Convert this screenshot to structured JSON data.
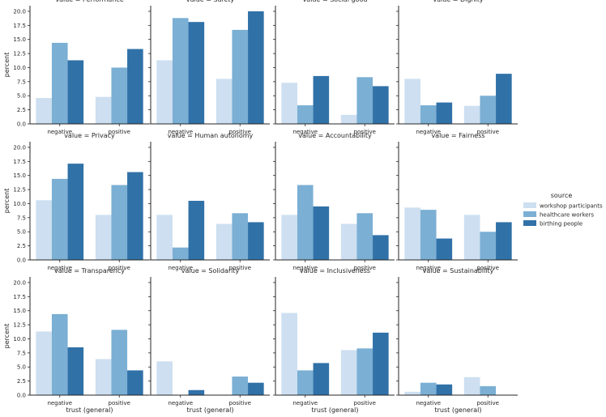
{
  "chart_data": {
    "type": "bar",
    "facet_prefix": "value = ",
    "categories": [
      "negative",
      "positive"
    ],
    "xlabel": "trust (general)",
    "ylabel": "percent",
    "ylim": [
      0,
      21
    ],
    "yticks": [
      0.0,
      2.5,
      5.0,
      7.5,
      10.0,
      12.5,
      15.0,
      17.5,
      20.0
    ],
    "ytick_labels": [
      "0.0",
      "2.5",
      "5.0",
      "7.5",
      "10.0",
      "12.5",
      "15.0",
      "17.5",
      "20.0"
    ],
    "legend": {
      "title": "source",
      "position": "right",
      "entries": [
        {
          "name": "workshop participants",
          "color": "#cddff0"
        },
        {
          "name": "healthcare workers",
          "color": "#7bafd4"
        },
        {
          "name": "birthing people",
          "color": "#3071a8"
        }
      ]
    },
    "panels": [
      {
        "value": "Performance",
        "series": [
          [
            4.6,
            4.8
          ],
          [
            14.4,
            10.0
          ],
          [
            11.3,
            13.3
          ]
        ]
      },
      {
        "value": "Safety",
        "series": [
          [
            11.3,
            8.0
          ],
          [
            18.8,
            16.7
          ],
          [
            18.1,
            20.0
          ]
        ]
      },
      {
        "value": "Social good",
        "series": [
          [
            7.3,
            1.6
          ],
          [
            3.3,
            8.3
          ],
          [
            8.5,
            6.7
          ]
        ]
      },
      {
        "value": "Dignity",
        "series": [
          [
            8.0,
            3.2
          ],
          [
            3.3,
            5.0
          ],
          [
            3.8,
            8.9
          ]
        ]
      },
      {
        "value": "Privacy",
        "series": [
          [
            10.6,
            8.0
          ],
          [
            14.4,
            13.3
          ],
          [
            17.1,
            15.6
          ]
        ]
      },
      {
        "value": "Human autonomy",
        "series": [
          [
            8.0,
            6.4
          ],
          [
            2.2,
            8.3
          ],
          [
            10.5,
            6.7
          ]
        ]
      },
      {
        "value": "Accountability",
        "series": [
          [
            8.0,
            6.4
          ],
          [
            13.3,
            8.3
          ],
          [
            9.5,
            4.4
          ]
        ]
      },
      {
        "value": "Fairness",
        "series": [
          [
            9.3,
            8.0
          ],
          [
            8.9,
            5.0
          ],
          [
            3.8,
            6.7
          ]
        ]
      },
      {
        "value": "Transparency",
        "series": [
          [
            11.3,
            6.4
          ],
          [
            14.4,
            11.6
          ],
          [
            8.5,
            4.4
          ]
        ]
      },
      {
        "value": "Solidarity",
        "series": [
          [
            6.0,
            0.0
          ],
          [
            0.0,
            3.3
          ],
          [
            0.9,
            2.2
          ]
        ]
      },
      {
        "value": "Inclusiveness",
        "series": [
          [
            14.6,
            8.0
          ],
          [
            4.4,
            8.3
          ],
          [
            5.7,
            11.1
          ]
        ]
      },
      {
        "value": "Sustainability",
        "series": [
          [
            0.6,
            3.2
          ],
          [
            2.2,
            1.6
          ],
          [
            1.9,
            0.0
          ]
        ]
      }
    ]
  }
}
